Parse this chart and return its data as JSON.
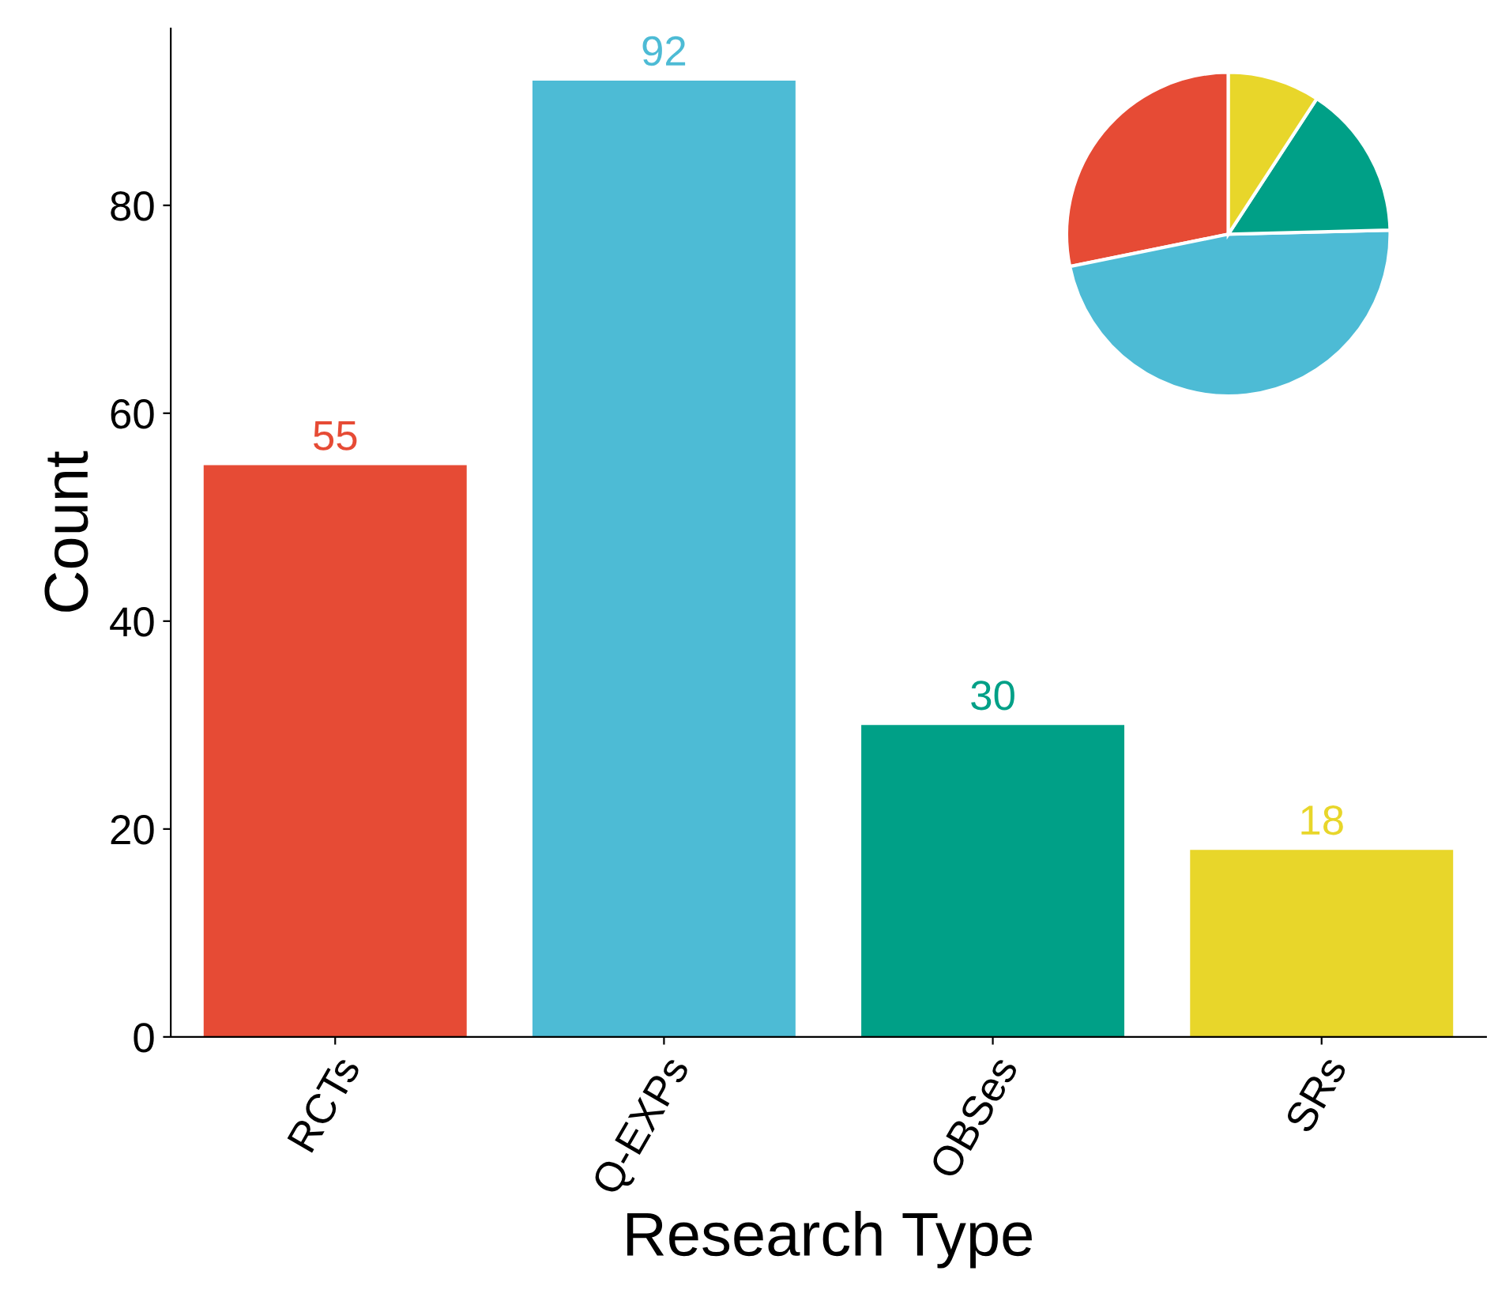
{
  "chart_data": [
    {
      "type": "bar",
      "xlabel": "Research Type",
      "ylabel": "Count",
      "categories": [
        "RCTs",
        "Q-EXPs",
        "OBSes",
        "SRs"
      ],
      "values": [
        55,
        92,
        30,
        18
      ],
      "colors": [
        "#e64b35",
        "#4dbbd5",
        "#00a087",
        "#e8d62a"
      ],
      "ylim": [
        0,
        97
      ],
      "yticks": [
        0,
        20,
        40,
        60,
        80
      ],
      "grid": false,
      "data_labels": true
    },
    {
      "type": "pie",
      "categories": [
        null,
        null,
        null,
        null
      ],
      "values": [
        28.2,
        47.2,
        15.4,
        9.2
      ],
      "colors": [
        "#e64b35",
        "#4dbbd5",
        "#00a087",
        "#e8d62a"
      ]
    }
  ]
}
